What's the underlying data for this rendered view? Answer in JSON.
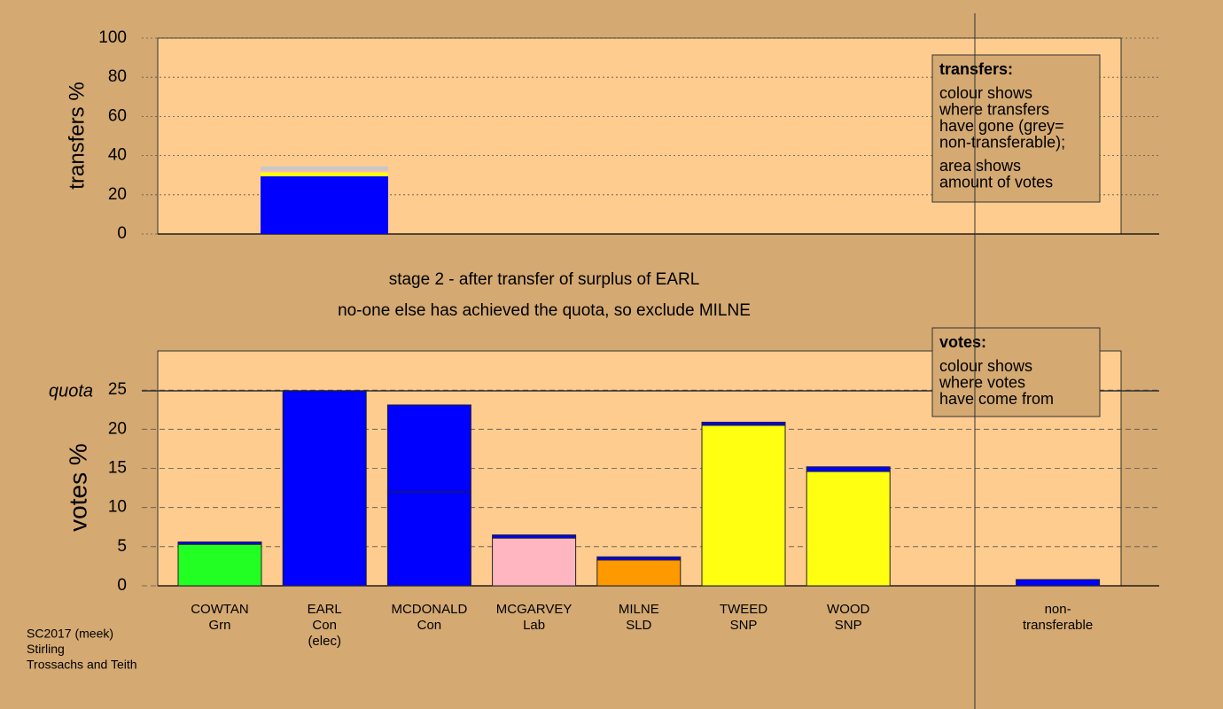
{
  "chart_data": [
    {
      "type": "bar",
      "stacked": true,
      "ylabel": "transfers %",
      "ylim": [
        0,
        100
      ],
      "yticks": [
        0,
        20,
        40,
        60,
        80,
        100
      ],
      "categories": [
        null
      ],
      "series": [
        {
          "color": "#0000ff",
          "values": [
            29.5
          ]
        },
        {
          "color": "#ffff00",
          "values": [
            2
          ]
        },
        {
          "color": "#ffb6c1",
          "values": [
            0.8
          ]
        },
        {
          "color": "#c8c8c8",
          "values": [
            2.2
          ]
        }
      ],
      "note": {
        "title": "transfers:",
        "paragraphs": [
          [
            "colour shows",
            "where transfers",
            "have gone (grey=",
            "non-transferable);"
          ],
          [
            "area shows",
            "amount of votes"
          ]
        ]
      }
    },
    {
      "type": "bar",
      "stacked": true,
      "ylabel": "votes %",
      "ylim": [
        0,
        30
      ],
      "yticks": [
        0,
        5,
        10,
        15,
        20,
        25
      ],
      "quota": {
        "label": "quota",
        "value": 24.9
      },
      "categories": [
        [
          "COWTAN",
          "Grn"
        ],
        [
          "EARL",
          "Con",
          "(elec)"
        ],
        [
          "MCDONALD",
          "Con"
        ],
        [
          "MCGARVEY",
          "Lab"
        ],
        [
          "MILNE",
          "SLD"
        ],
        [
          "TWEED",
          "SNP"
        ],
        [
          "WOOD",
          "SNP"
        ],
        null,
        [
          "non-",
          "transferable"
        ]
      ],
      "series": [
        {
          "colors": [
            "#22ff22",
            "#0000ff",
            "#0000ff",
            "#ffb6c1",
            "#ff9900",
            "#ffff11",
            "#ffff11",
            null,
            null
          ],
          "values": [
            5.3,
            24.9,
            12,
            6.1,
            3.3,
            20.5,
            14.6,
            null,
            null
          ]
        },
        {
          "color": "#0000ff",
          "values": [
            0.3,
            null,
            11.1,
            0.4,
            0.4,
            0.4,
            0.6,
            null,
            0.8
          ]
        }
      ],
      "note": {
        "title": "votes:",
        "paragraphs": [
          [
            "colour shows",
            "where votes",
            "have come from"
          ]
        ]
      }
    }
  ],
  "stage": [
    "stage 2 - after transfer of surplus of EARL",
    "no-one else has achieved the quota, so exclude MILNE"
  ],
  "footer": [
    "SC2017 (meek)",
    "Stirling",
    "Trossachs and Teith"
  ]
}
